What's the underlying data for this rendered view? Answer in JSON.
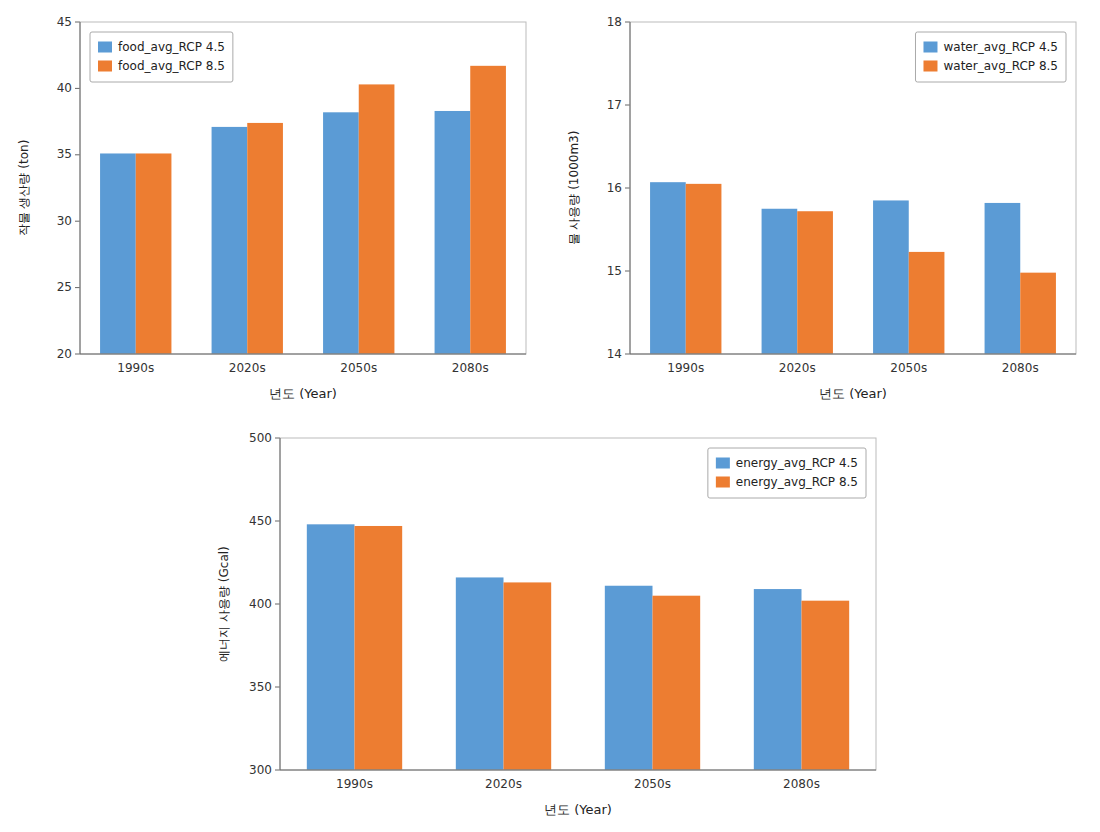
{
  "chart_data": [
    {
      "type": "bar",
      "categories": [
        "1990s",
        "2020s",
        "2050s",
        "2080s"
      ],
      "series": [
        {
          "name": "food_avg_RCP 4.5",
          "color": "#5B9BD5",
          "values": [
            35.1,
            37.1,
            38.2,
            38.3
          ]
        },
        {
          "name": "food_avg_RCP 8.5",
          "color": "#ED7D31",
          "values": [
            35.1,
            37.4,
            40.3,
            41.7
          ]
        }
      ],
      "xlabel": "년도 (Year)",
      "ylabel": "작물 생산량 (ton)",
      "ylim": [
        20,
        45
      ],
      "yticks": [
        20,
        25,
        30,
        35,
        40,
        45
      ],
      "legend": "upper left",
      "grid": false
    },
    {
      "type": "bar",
      "categories": [
        "1990s",
        "2020s",
        "2050s",
        "2080s"
      ],
      "series": [
        {
          "name": "water_avg_RCP 4.5",
          "color": "#5B9BD5",
          "values": [
            16.07,
            15.75,
            15.85,
            15.82
          ]
        },
        {
          "name": "water_avg_RCP 8.5",
          "color": "#ED7D31",
          "values": [
            16.05,
            15.72,
            15.23,
            14.98
          ]
        }
      ],
      "xlabel": "년도 (Year)",
      "ylabel": "물 사용량 (1000m3)",
      "ylim": [
        14,
        18
      ],
      "yticks": [
        14,
        15,
        16,
        17,
        18
      ],
      "legend": "upper right",
      "grid": false
    },
    {
      "type": "bar",
      "categories": [
        "1990s",
        "2020s",
        "2050s",
        "2080s"
      ],
      "series": [
        {
          "name": "energy_avg_RCP 4.5",
          "color": "#5B9BD5",
          "values": [
            448,
            416,
            411,
            409
          ]
        },
        {
          "name": "energy_avg_RCP 8.5",
          "color": "#ED7D31",
          "values": [
            447,
            413,
            405,
            402
          ]
        }
      ],
      "xlabel": "년도 (Year)",
      "ylabel": "에너지 사용량 (Gcal)",
      "ylim": [
        300,
        500
      ],
      "yticks": [
        300,
        350,
        400,
        450,
        500
      ],
      "legend": "upper right",
      "grid": false
    }
  ]
}
